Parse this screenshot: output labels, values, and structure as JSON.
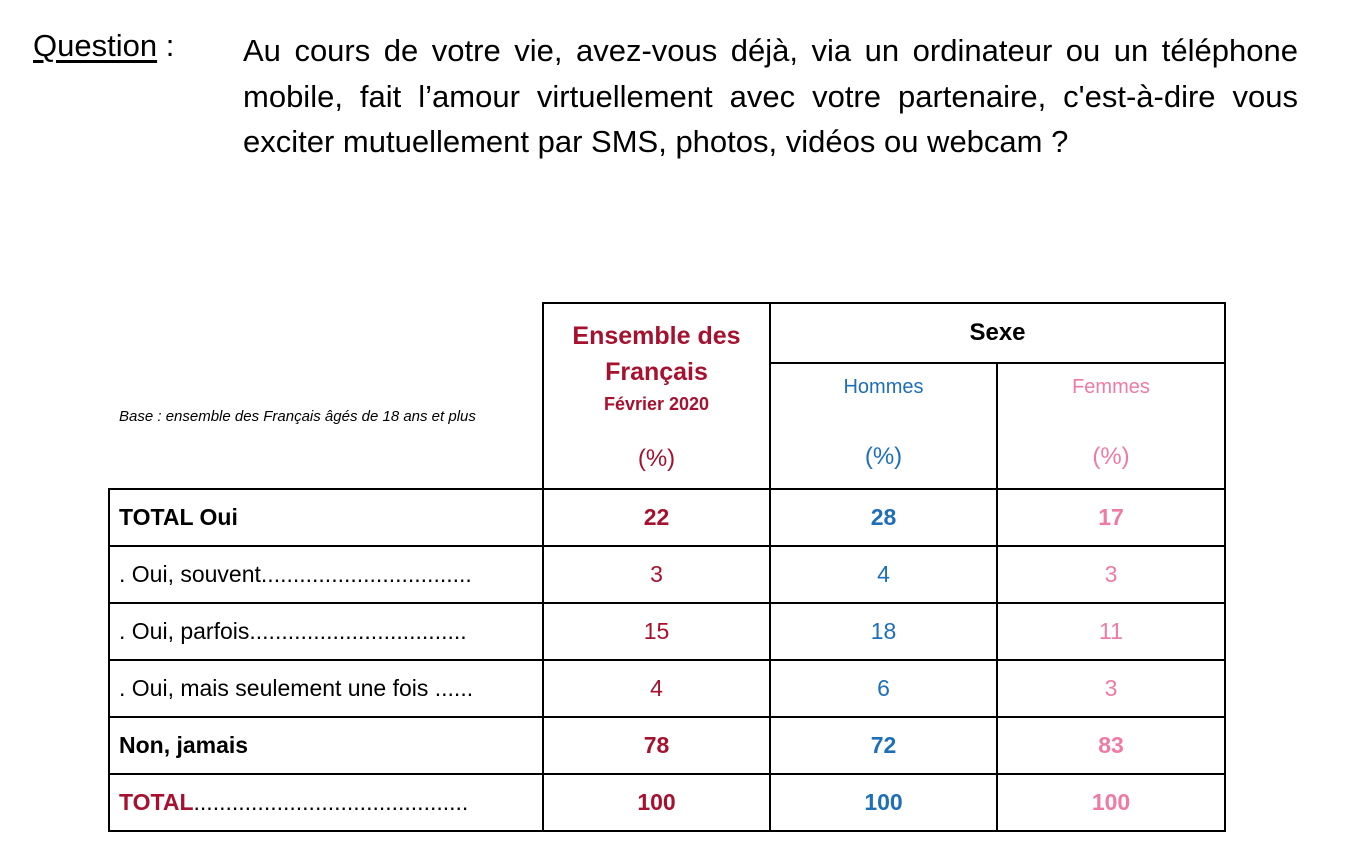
{
  "question": {
    "label": "Question",
    "colon": " :",
    "text": "Au cours de votre vie, avez-vous déjà, via un ordinateur ou un téléphone mobile, fait l’amour virtuellement avec votre partenaire, c'est-à-dire vous exciter mutuellement par SMS, photos, vidéos ou webcam ?"
  },
  "base_note": "Base : ensemble des Français âgés de 18 ans et plus",
  "header": {
    "ensemble_line1": "Ensemble des",
    "ensemble_line2": "Français",
    "date": "Février 2020",
    "pct": "(%)",
    "group": "Sexe",
    "hommes": "Hommes",
    "femmes": "Femmes"
  },
  "colors": {
    "ensemble": "#a5112e",
    "hommes": "#1f6fb8",
    "femmes": "#ef7ba2"
  },
  "rows": [
    {
      "label": "TOTAL Oui",
      "ensemble": "22",
      "hommes": "28",
      "femmes": "17"
    },
    {
      "label": ". Oui, souvent.................................",
      "ensemble": "3",
      "hommes": "4",
      "femmes": "3"
    },
    {
      "label": ". Oui, parfois..................................",
      "ensemble": "15",
      "hommes": "18",
      "femmes": "11"
    },
    {
      "label": ". Oui, mais seulement une fois ......",
      "ensemble": "4",
      "hommes": "6",
      "femmes": "3"
    },
    {
      "label": "Non, jamais",
      "ensemble": "78",
      "hommes": "72",
      "femmes": "83"
    },
    {
      "label": "TOTAL...........................................",
      "ensemble": "100",
      "hommes": "100",
      "femmes": "100"
    }
  ]
}
